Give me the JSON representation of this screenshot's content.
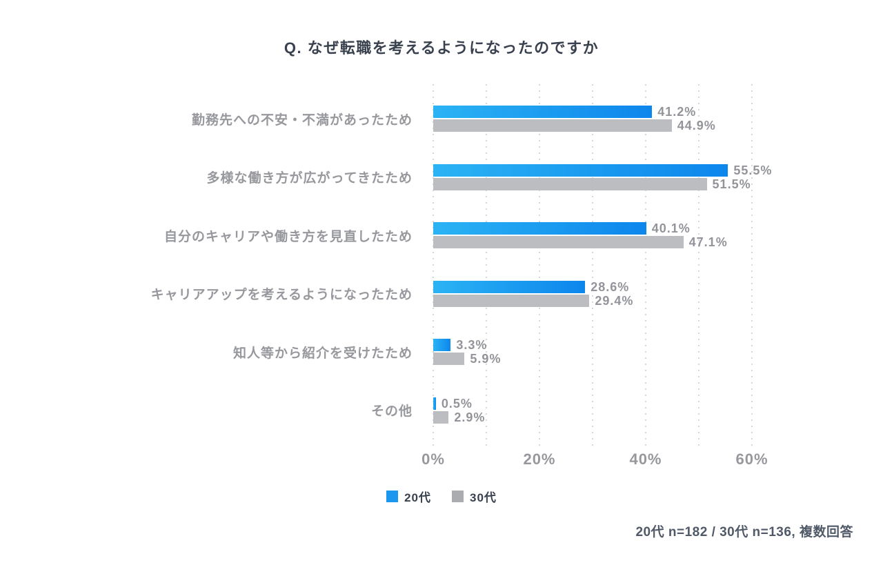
{
  "title": "Q. なぜ転職を考えるようになったのですか",
  "chart_data": {
    "type": "bar",
    "orientation": "horizontal",
    "categories": [
      "勤務先への不安・不満があったため",
      "多様な働き方が広がってきたため",
      "自分のキャリアや働き方を見直したため",
      "キャリアアップを考えるようになったため",
      "知人等から紹介を受けたため",
      "その他"
    ],
    "series": [
      {
        "name": "20代",
        "values": [
          41.2,
          55.5,
          40.1,
          28.6,
          3.3,
          0.5
        ]
      },
      {
        "name": "30代",
        "values": [
          44.9,
          51.5,
          47.1,
          29.4,
          5.9,
          2.9
        ]
      }
    ],
    "value_labels": [
      [
        "41.2%",
        "55.5%",
        "40.1%",
        "28.6%",
        "3.3%",
        "0.5%"
      ],
      [
        "44.9%",
        "51.5%",
        "47.1%",
        "29.4%",
        "5.9%",
        "2.9%"
      ]
    ],
    "xlim": [
      0,
      60
    ],
    "gridline_step": 10,
    "grid": true,
    "x_ticks": [
      {
        "value": 0,
        "label": "0%"
      },
      {
        "value": 20,
        "label": "20%"
      },
      {
        "value": 40,
        "label": "40%"
      },
      {
        "value": 60,
        "label": "60%"
      }
    ],
    "legend_position": "bottom-center"
  },
  "legend": {
    "items": [
      {
        "label": "20代",
        "swatch": "blue-swatch"
      },
      {
        "label": "30代",
        "swatch": "gray-swatch"
      }
    ]
  },
  "footer": {
    "note": "20代 n=182 / 30代 n=136, 複数回答"
  },
  "colors": {
    "bar_blue_start": "#2BB3F4",
    "bar_blue_end": "#0D86EC",
    "bar_gray": "#BCBDC0",
    "legend_blue": "#1B97F0",
    "legend_gray": "#ABACB0",
    "title_text": "#39414E",
    "label_text": "#97989D",
    "value_text": "#92949A",
    "footer_text": "#4F5967",
    "gridline": "#D6D7DB"
  }
}
